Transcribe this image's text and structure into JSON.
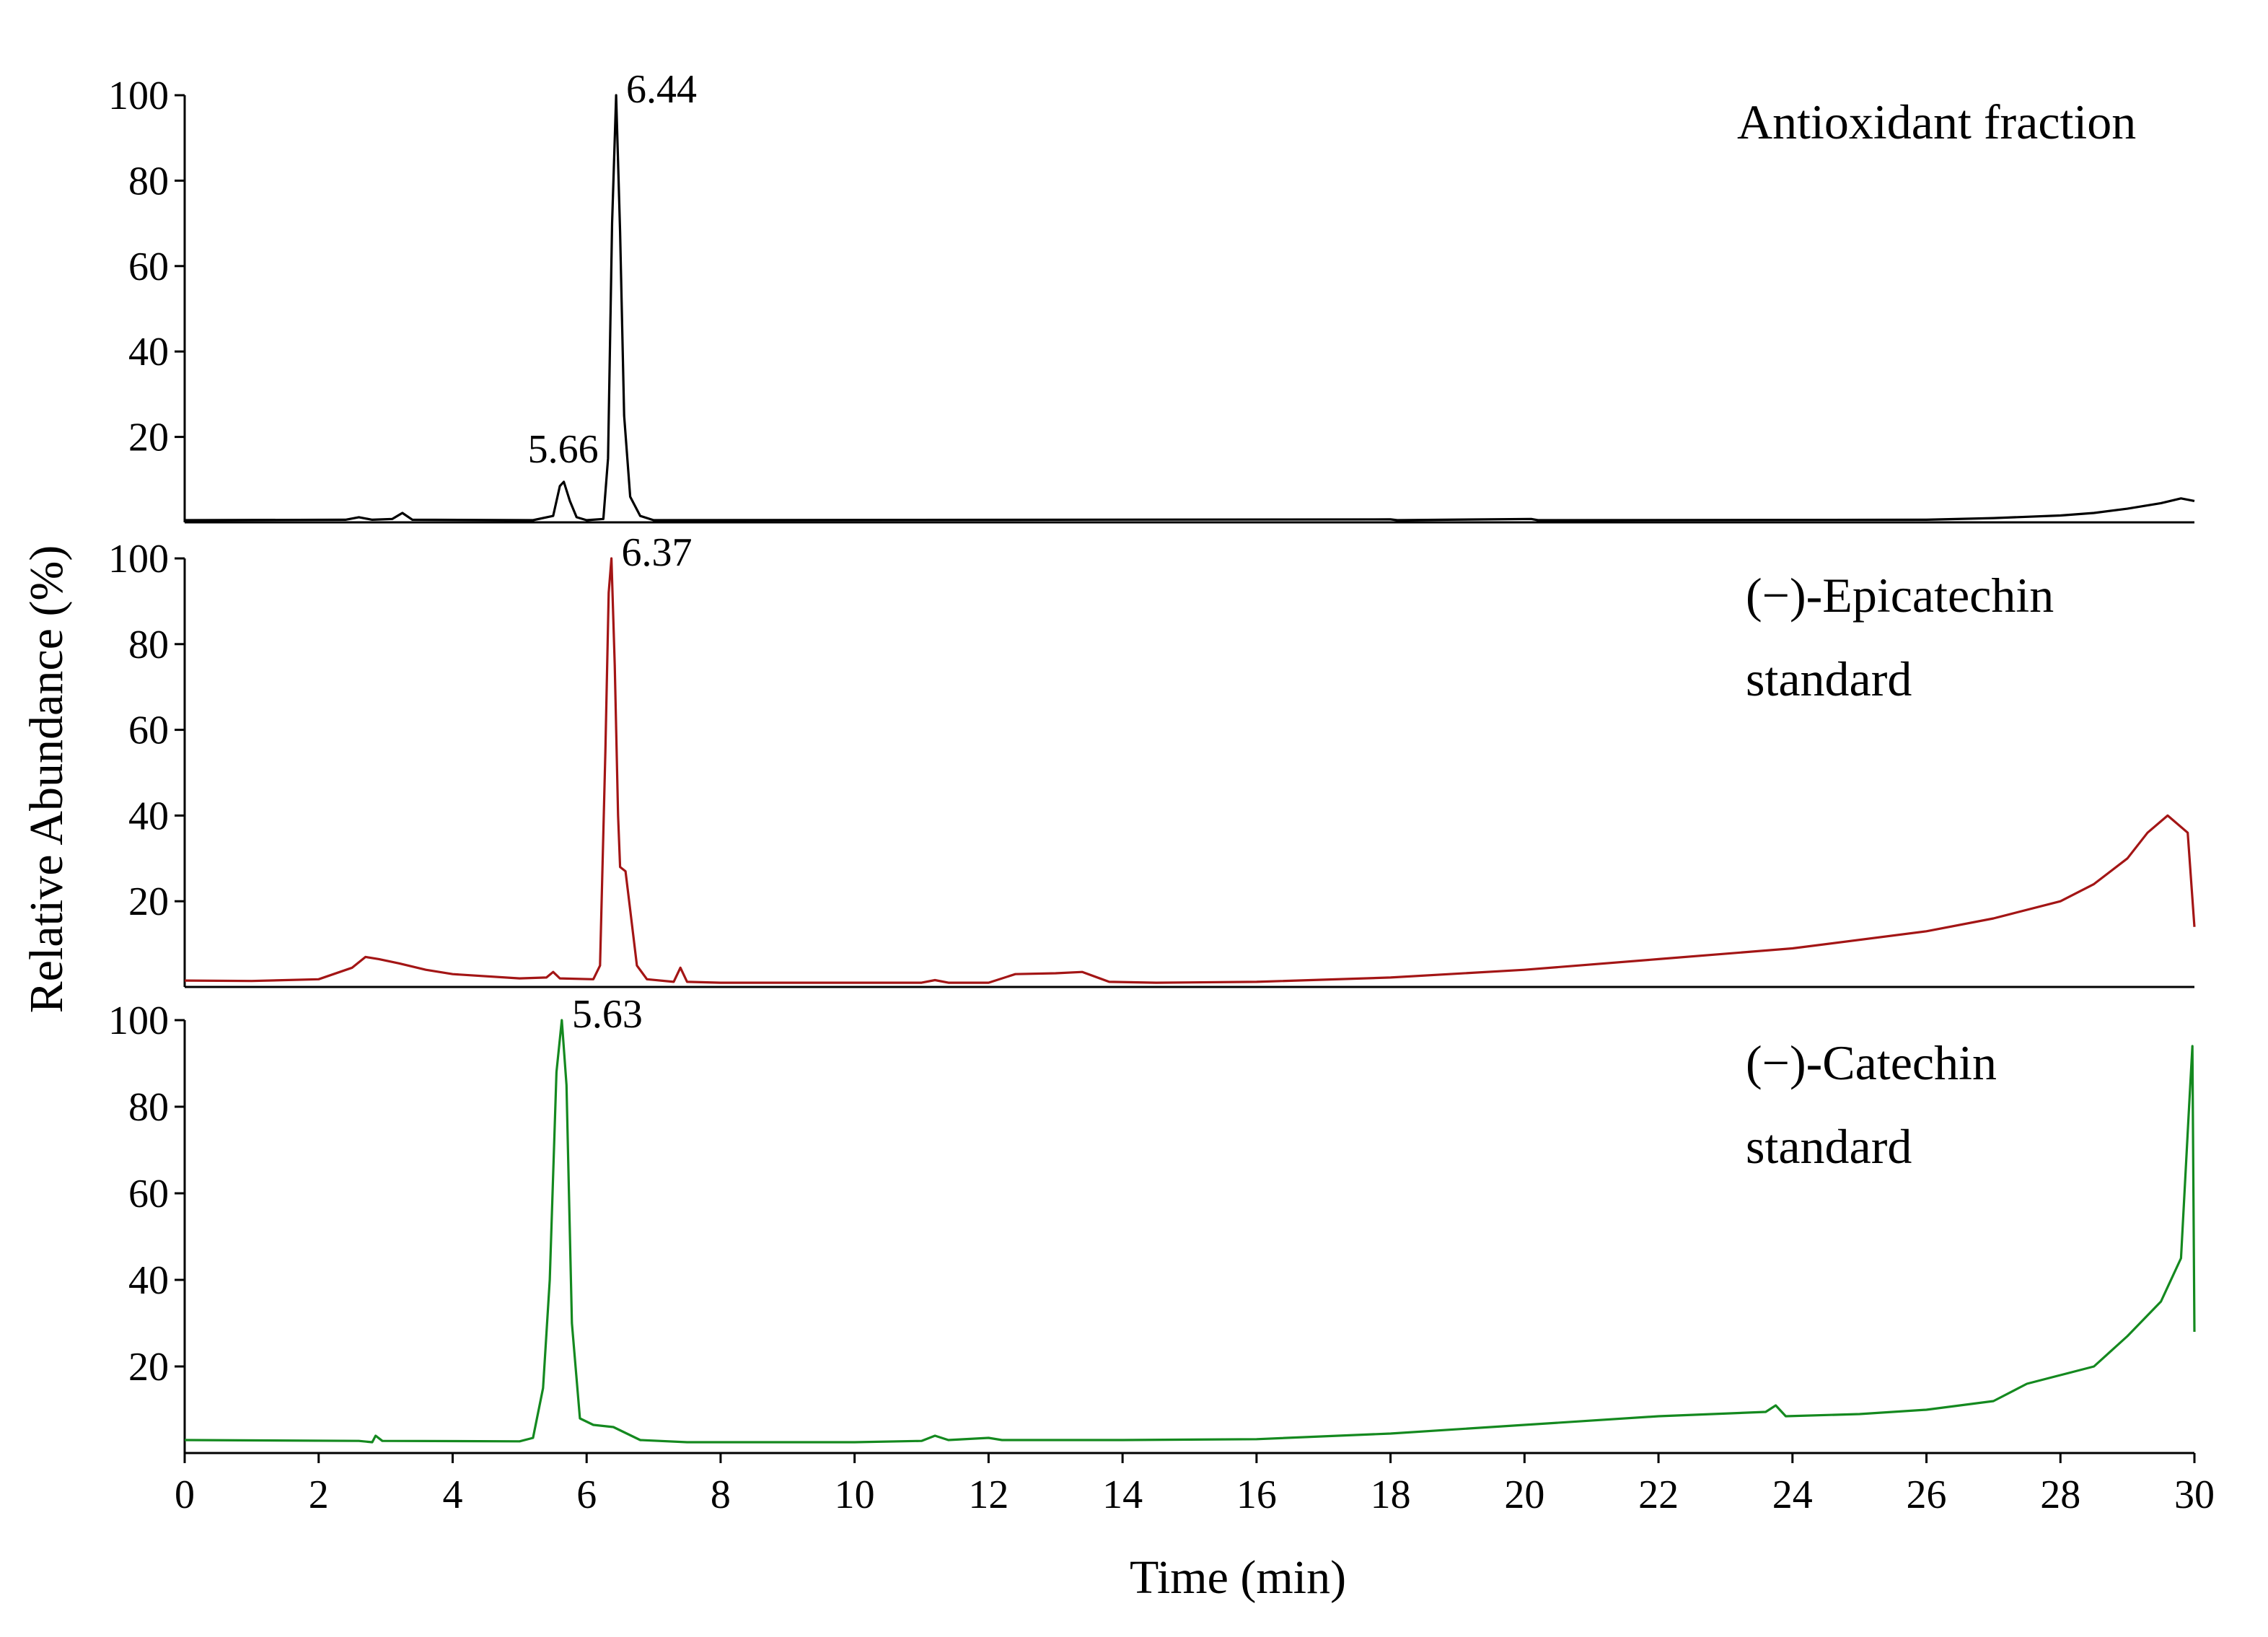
{
  "chart_data": {
    "type": "line",
    "xlabel": "Time (min)",
    "ylabel": "Relative Abundance (%)",
    "xlim": [
      0,
      30
    ],
    "x_ticks": [
      "0",
      "2",
      "4",
      "6",
      "8",
      "10",
      "12",
      "14",
      "16",
      "18",
      "20",
      "22",
      "24",
      "26",
      "28",
      "30"
    ],
    "grid": false,
    "panels": [
      {
        "label_lines": [
          "Antioxidant fraction"
        ],
        "color": "#000000",
        "ylim": [
          0,
          100
        ],
        "y_ticks": [
          "20",
          "40",
          "60",
          "80",
          "100"
        ],
        "peak_labels": [
          {
            "x": 6.44,
            "y": 100,
            "text": "6.44"
          },
          {
            "x": 5.66,
            "y": 10,
            "text": "5.66"
          }
        ],
        "points": [
          [
            0,
            0.5
          ],
          [
            2.4,
            0.6
          ],
          [
            2.6,
            1.2
          ],
          [
            2.8,
            0.6
          ],
          [
            3.1,
            0.8
          ],
          [
            3.25,
            2.2
          ],
          [
            3.4,
            0.6
          ],
          [
            5.2,
            0.5
          ],
          [
            5.5,
            1.5
          ],
          [
            5.6,
            8.5
          ],
          [
            5.66,
            9.5
          ],
          [
            5.75,
            5
          ],
          [
            5.85,
            1.2
          ],
          [
            6.0,
            0.5
          ],
          [
            6.25,
            0.8
          ],
          [
            6.32,
            15
          ],
          [
            6.38,
            70
          ],
          [
            6.44,
            100
          ],
          [
            6.5,
            68
          ],
          [
            6.56,
            25
          ],
          [
            6.65,
            6
          ],
          [
            6.8,
            1.5
          ],
          [
            7.0,
            0.5
          ],
          [
            18.0,
            0.7
          ],
          [
            18.1,
            0.5
          ],
          [
            20.1,
            0.8
          ],
          [
            20.2,
            0.5
          ],
          [
            26.0,
            0.6
          ],
          [
            27.0,
            1.0
          ],
          [
            28.0,
            1.6
          ],
          [
            28.5,
            2.2
          ],
          [
            29.0,
            3.2
          ],
          [
            29.5,
            4.5
          ],
          [
            29.8,
            5.6
          ],
          [
            30.0,
            5.0
          ]
        ]
      },
      {
        "label_lines": [
          "(−)-Epicatechin",
          "standard"
        ],
        "color": "#a31515",
        "ylim": [
          0,
          100
        ],
        "y_ticks": [
          "20",
          "40",
          "60",
          "80",
          "100"
        ],
        "peak_labels": [
          {
            "x": 6.37,
            "y": 100,
            "text": "6.37"
          }
        ],
        "points": [
          [
            0,
            1.5
          ],
          [
            1.0,
            1.4
          ],
          [
            2.0,
            1.8
          ],
          [
            2.5,
            4.5
          ],
          [
            2.7,
            7
          ],
          [
            2.9,
            6.5
          ],
          [
            3.2,
            5.5
          ],
          [
            3.6,
            4
          ],
          [
            4.0,
            3
          ],
          [
            5.0,
            2
          ],
          [
            5.4,
            2.2
          ],
          [
            5.5,
            3.5
          ],
          [
            5.6,
            2
          ],
          [
            6.1,
            1.8
          ],
          [
            6.2,
            5
          ],
          [
            6.28,
            55
          ],
          [
            6.33,
            92
          ],
          [
            6.37,
            100
          ],
          [
            6.42,
            75
          ],
          [
            6.47,
            40
          ],
          [
            6.5,
            28
          ],
          [
            6.58,
            27
          ],
          [
            6.65,
            18
          ],
          [
            6.75,
            5
          ],
          [
            6.9,
            1.8
          ],
          [
            7.3,
            1.2
          ],
          [
            7.4,
            4.5
          ],
          [
            7.5,
            1.2
          ],
          [
            8.0,
            1.0
          ],
          [
            11.0,
            1.0
          ],
          [
            11.2,
            1.6
          ],
          [
            11.4,
            1.0
          ],
          [
            12.0,
            1.0
          ],
          [
            12.4,
            3.0
          ],
          [
            13.0,
            3.2
          ],
          [
            13.4,
            3.5
          ],
          [
            13.8,
            1.2
          ],
          [
            14.5,
            1.0
          ],
          [
            16.0,
            1.2
          ],
          [
            18.0,
            2.2
          ],
          [
            20.0,
            4.0
          ],
          [
            22.0,
            6.5
          ],
          [
            24.0,
            9.0
          ],
          [
            26.0,
            13.0
          ],
          [
            27.0,
            16.0
          ],
          [
            28.0,
            20.0
          ],
          [
            28.5,
            24
          ],
          [
            29.0,
            30
          ],
          [
            29.3,
            36
          ],
          [
            29.6,
            40
          ],
          [
            29.9,
            36
          ],
          [
            30.0,
            14
          ]
        ]
      },
      {
        "label_lines": [
          "(−)-Catechin",
          "standard"
        ],
        "color": "#14891f",
        "ylim": [
          0,
          100
        ],
        "y_ticks": [
          "20",
          "40",
          "60",
          "80",
          "100"
        ],
        "peak_labels": [
          {
            "x": 5.63,
            "y": 100,
            "text": "5.63"
          }
        ],
        "points": [
          [
            0,
            3
          ],
          [
            2.6,
            2.8
          ],
          [
            2.8,
            2.5
          ],
          [
            2.85,
            4
          ],
          [
            2.95,
            2.8
          ],
          [
            5.0,
            2.7
          ],
          [
            5.2,
            3.5
          ],
          [
            5.35,
            15
          ],
          [
            5.45,
            40
          ],
          [
            5.55,
            88
          ],
          [
            5.63,
            100
          ],
          [
            5.7,
            85
          ],
          [
            5.78,
            30
          ],
          [
            5.9,
            8
          ],
          [
            6.1,
            6.5
          ],
          [
            6.4,
            6
          ],
          [
            6.6,
            4.5
          ],
          [
            6.8,
            3
          ],
          [
            7.5,
            2.5
          ],
          [
            10.0,
            2.5
          ],
          [
            11.0,
            2.8
          ],
          [
            11.2,
            4
          ],
          [
            11.4,
            3
          ],
          [
            12.0,
            3.5
          ],
          [
            12.2,
            3
          ],
          [
            14.0,
            3
          ],
          [
            16.0,
            3.2
          ],
          [
            18.0,
            4.5
          ],
          [
            20.0,
            6.5
          ],
          [
            22.0,
            8.5
          ],
          [
            23.6,
            9.5
          ],
          [
            23.75,
            11
          ],
          [
            23.9,
            8.5
          ],
          [
            25.0,
            9
          ],
          [
            26.0,
            10
          ],
          [
            27.0,
            12
          ],
          [
            27.5,
            16
          ],
          [
            28.0,
            18
          ],
          [
            28.5,
            20
          ],
          [
            29.0,
            27
          ],
          [
            29.5,
            35
          ],
          [
            29.8,
            45
          ],
          [
            29.92,
            80
          ],
          [
            29.97,
            94
          ],
          [
            30.0,
            28
          ]
        ]
      }
    ]
  }
}
